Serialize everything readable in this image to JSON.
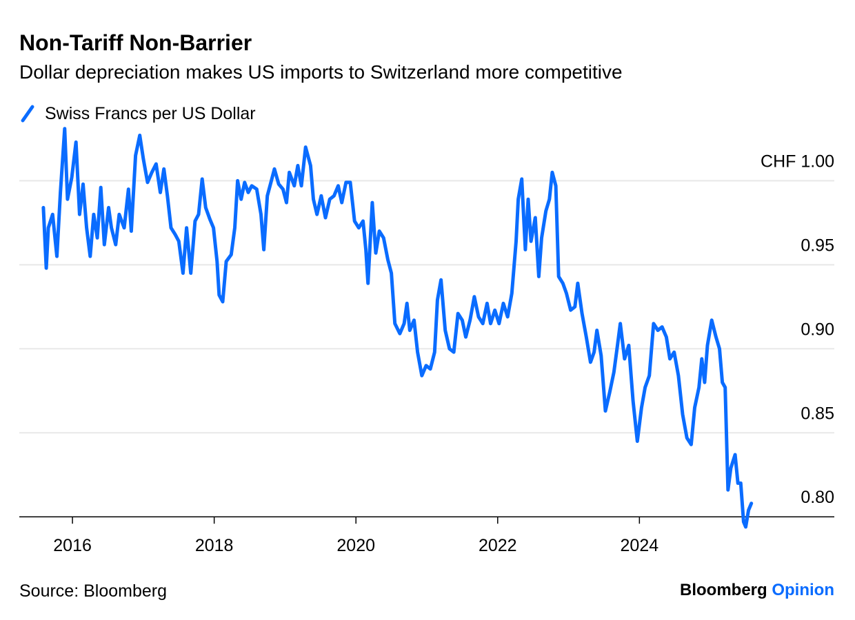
{
  "chart_data": {
    "type": "line",
    "title": "Non-Tariff Non-Barrier",
    "subtitle": "Dollar depreciation makes US imports to Switzerland more competitive",
    "source": "Source: Bloomberg",
    "brand": {
      "name": "Bloomberg",
      "product": "Opinion"
    },
    "series": [
      {
        "name": "Swiss Francs per US Dollar",
        "color": "#0a6cff",
        "x": [
          2015.59,
          2015.63,
          2015.66,
          2015.72,
          2015.78,
          2015.83,
          2015.89,
          2015.93,
          2015.99,
          2016.05,
          2016.1,
          2016.15,
          2016.2,
          2016.25,
          2016.3,
          2016.35,
          2016.4,
          2016.45,
          2016.51,
          2016.55,
          2016.61,
          2016.66,
          2016.73,
          2016.79,
          2016.83,
          2016.89,
          2016.95,
          2017.0,
          2017.06,
          2017.12,
          2017.18,
          2017.24,
          2017.29,
          2017.34,
          2017.39,
          2017.45,
          2017.5,
          2017.56,
          2017.61,
          2017.67,
          2017.73,
          2017.78,
          2017.83,
          2017.88,
          2017.94,
          2017.99,
          2018.04,
          2018.07,
          2018.12,
          2018.17,
          2018.24,
          2018.29,
          2018.33,
          2018.38,
          2018.43,
          2018.48,
          2018.53,
          2018.6,
          2018.66,
          2018.7,
          2018.75,
          2018.8,
          2018.85,
          2018.91,
          2018.97,
          2019.02,
          2019.06,
          2019.13,
          2019.18,
          2019.23,
          2019.29,
          2019.36,
          2019.4,
          2019.45,
          2019.51,
          2019.57,
          2019.63,
          2019.69,
          2019.75,
          2019.8,
          2019.86,
          2019.92,
          2019.98,
          2020.04,
          2020.1,
          2020.14,
          2020.17,
          2020.23,
          2020.28,
          2020.33,
          2020.39,
          2020.45,
          2020.5,
          2020.55,
          2020.62,
          2020.68,
          2020.72,
          2020.76,
          2020.82,
          2020.87,
          2020.93,
          2020.99,
          2021.05,
          2021.11,
          2021.15,
          2021.2,
          2021.26,
          2021.32,
          2021.38,
          2021.44,
          2021.5,
          2021.55,
          2021.61,
          2021.67,
          2021.73,
          2021.79,
          2021.85,
          2021.9,
          2021.96,
          2022.02,
          2022.08,
          2022.14,
          2022.2,
          2022.26,
          2022.29,
          2022.34,
          2022.39,
          2022.43,
          2022.47,
          2022.53,
          2022.58,
          2022.62,
          2022.68,
          2022.73,
          2022.77,
          2022.82,
          2022.86,
          2022.92,
          2022.97,
          2023.03,
          2023.09,
          2023.13,
          2023.19,
          2023.25,
          2023.31,
          2023.36,
          2023.4,
          2023.46,
          2023.52,
          2023.58,
          2023.64,
          2023.69,
          2023.73,
          2023.79,
          2023.85,
          2023.91,
          2023.97,
          2024.03,
          2024.08,
          2024.14,
          2024.2,
          2024.26,
          2024.32,
          2024.38,
          2024.43,
          2024.49,
          2024.55,
          2024.61,
          2024.67,
          2024.73,
          2024.78,
          2024.84,
          2024.88,
          2024.92,
          2024.96,
          2025.02,
          2025.08,
          2025.13,
          2025.17,
          2025.21,
          2025.25,
          2025.29,
          2025.35,
          2025.39,
          2025.43,
          2025.47,
          2025.5,
          2025.54,
          2025.58
        ],
        "values": [
          0.984,
          0.948,
          0.972,
          0.98,
          0.955,
          0.993,
          1.031,
          0.989,
          1.002,
          1.023,
          0.98,
          0.998,
          0.972,
          0.955,
          0.98,
          0.966,
          0.996,
          0.962,
          0.984,
          0.972,
          0.962,
          0.98,
          0.972,
          0.995,
          0.97,
          1.015,
          1.027,
          1.013,
          0.999,
          1.005,
          1.01,
          0.993,
          1.007,
          0.991,
          0.972,
          0.968,
          0.964,
          0.945,
          0.972,
          0.945,
          0.976,
          0.98,
          1.001,
          0.984,
          0.977,
          0.972,
          0.952,
          0.932,
          0.928,
          0.952,
          0.956,
          0.972,
          1.0,
          0.989,
          0.999,
          0.993,
          0.997,
          0.995,
          0.98,
          0.959,
          0.991,
          0.999,
          1.007,
          0.998,
          0.995,
          0.987,
          1.005,
          0.997,
          1.009,
          0.997,
          1.02,
          1.009,
          0.989,
          0.98,
          0.991,
          0.978,
          0.989,
          0.991,
          0.997,
          0.987,
          0.999,
          0.999,
          0.976,
          0.972,
          0.976,
          0.959,
          0.939,
          0.987,
          0.957,
          0.97,
          0.966,
          0.953,
          0.945,
          0.915,
          0.909,
          0.915,
          0.927,
          0.911,
          0.917,
          0.898,
          0.884,
          0.89,
          0.888,
          0.898,
          0.929,
          0.941,
          0.911,
          0.9,
          0.898,
          0.921,
          0.917,
          0.907,
          0.917,
          0.931,
          0.919,
          0.915,
          0.927,
          0.915,
          0.923,
          0.915,
          0.927,
          0.919,
          0.933,
          0.964,
          0.989,
          1.001,
          0.959,
          0.989,
          0.964,
          0.978,
          0.943,
          0.966,
          0.982,
          0.989,
          1.005,
          0.997,
          0.943,
          0.939,
          0.933,
          0.923,
          0.925,
          0.939,
          0.921,
          0.907,
          0.892,
          0.898,
          0.911,
          0.896,
          0.863,
          0.874,
          0.886,
          0.902,
          0.915,
          0.894,
          0.902,
          0.869,
          0.845,
          0.865,
          0.877,
          0.884,
          0.915,
          0.911,
          0.913,
          0.907,
          0.894,
          0.898,
          0.884,
          0.861,
          0.847,
          0.843,
          0.865,
          0.877,
          0.894,
          0.88,
          0.902,
          0.917,
          0.907,
          0.9,
          0.88,
          0.877,
          0.816,
          0.829,
          0.837,
          0.82,
          0.82,
          0.797,
          0.794,
          0.804,
          0.808
        ]
      }
    ],
    "xlim": [
      2015.25,
      2026.75
    ],
    "xticks": [
      2016,
      2018,
      2020,
      2022,
      2024
    ],
    "ylim": [
      0.78,
      1.035
    ],
    "yticks": [
      {
        "value": 0.8,
        "label": "0.80"
      },
      0.85,
      {
        "value": 0.9,
        "label": "0.90"
      },
      0.95,
      {
        "value": 1.0,
        "label": "CHF 1.00"
      }
    ],
    "grid": true
  }
}
